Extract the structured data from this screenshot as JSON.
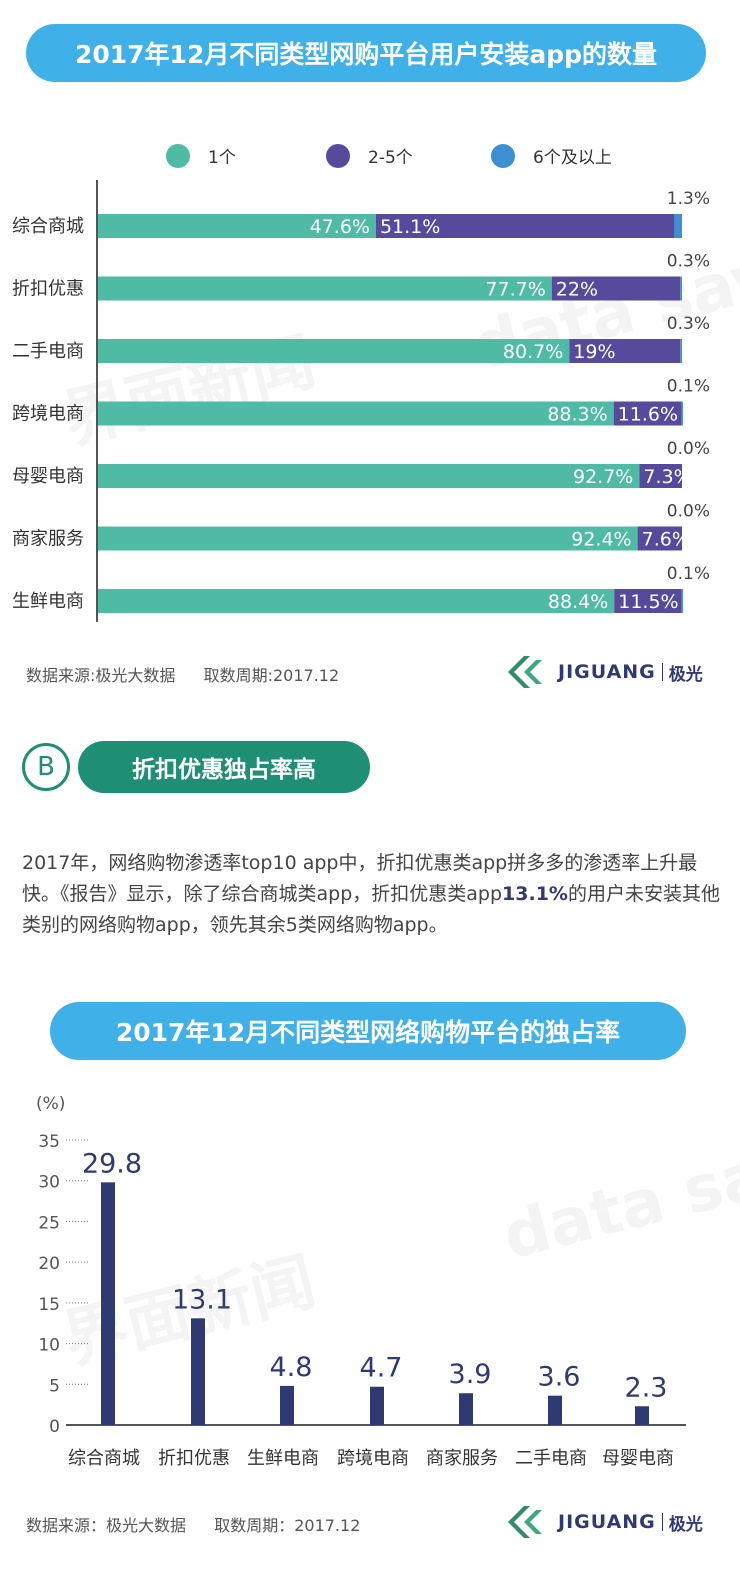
{
  "chart1": {
    "title": "2017年12月不同类型网购平台用户安装app的数量",
    "legend": [
      {
        "label": "1个",
        "color": "#4fbba5"
      },
      {
        "label": "2-5个",
        "color": "#574a9c"
      },
      {
        "label": "6个及以上",
        "color": "#3c8fd0"
      }
    ],
    "source": "数据来源:极光大数据",
    "period": "取数周期:2017.12"
  },
  "section_b": {
    "letter": "B",
    "heading": "折扣优惠独占率高",
    "para_part1": "2017年，网络购物渗透率top10 app中，折扣优惠类app拼多多的渗透率上升最快。《报告》显示，除了综合商城类app，折扣优惠类app",
    "para_highlight": "13.1%",
    "para_part2": "的用户未安装其他类别的网络购物app，领先其余5类网络购物app。"
  },
  "chart2": {
    "title": "2017年12月不同类型网络购物平台的独占率",
    "unit": "(%)",
    "source": "数据来源：极光大数据",
    "period": "取数周期：2017.12"
  },
  "logo": {
    "word": "JIGUANG",
    "cn": "极光"
  },
  "watermarks": [
    "界面新闻",
    "data says"
  ],
  "chart_data": [
    {
      "type": "bar",
      "orientation": "horizontal",
      "stacked": true,
      "normalized": "percent",
      "title": "2017年12月不同类型网购平台用户安装app的数量",
      "categories": [
        "综合商城",
        "折扣优惠",
        "二手电商",
        "跨境电商",
        "母婴电商",
        "商家服务",
        "生鲜电商"
      ],
      "series": [
        {
          "name": "1个",
          "color": "#4fbba5",
          "values": [
            47.6,
            77.7,
            80.7,
            88.3,
            92.7,
            92.4,
            88.4
          ],
          "labels": [
            "47.6%",
            "77.7%",
            "80.7%",
            "88.3%",
            "92.7%",
            "92.4%",
            "88.4%"
          ]
        },
        {
          "name": "2-5个",
          "color": "#574a9c",
          "values": [
            51.1,
            22,
            19,
            11.6,
            7.3,
            7.6,
            11.5
          ],
          "labels": [
            "51.1%",
            "22%",
            "19%",
            "11.6%",
            "7.3%",
            "7.6%",
            "11.5%"
          ]
        },
        {
          "name": "6个及以上",
          "color": "#3c8fd0",
          "values": [
            1.3,
            0.3,
            0.3,
            0.1,
            0.0,
            0.0,
            0.1
          ],
          "labels": [
            "1.3%",
            "0.3%",
            "0.3%",
            "0.1%",
            "0.0%",
            "0.0%",
            "0.1%"
          ]
        }
      ],
      "legend_position": "top"
    },
    {
      "type": "bar",
      "title": "2017年12月不同类型网络购物平台的独占率",
      "ylabel": "(%)",
      "categories": [
        "综合商城",
        "折扣优惠",
        "生鲜电商",
        "跨境电商",
        "商家服务",
        "二手电商",
        "母婴电商"
      ],
      "values": [
        29.8,
        13.1,
        4.8,
        4.7,
        3.9,
        3.6,
        2.3
      ],
      "labels": [
        "29.8",
        "13.1",
        "4.8",
        "4.7",
        "3.9",
        "3.6",
        "2.3"
      ],
      "ylim": [
        0,
        35
      ],
      "yticks": [
        "0",
        "5",
        "10",
        "15",
        "20",
        "25",
        "30",
        "35"
      ],
      "color": "#2f3a72",
      "grid": "dotted-ticks"
    }
  ]
}
